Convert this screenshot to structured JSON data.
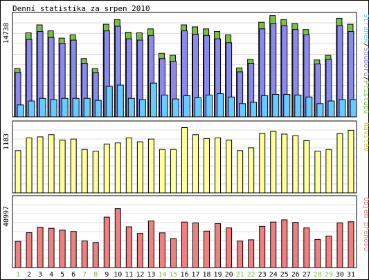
{
  "title": "Denní statistika za srpen 2010",
  "colors": {
    "background": "#ffffff",
    "border": "#000000",
    "grid": "#bfbfbf",
    "hits": "#7ac143",
    "files": "#8a8aee",
    "pages": "#66ccff",
    "visits": "#ffff99",
    "volume": "#f08080",
    "weekend": "#7ac143",
    "weekday": "#000000"
  },
  "chart_data": [
    {
      "type": "bar",
      "panel": "top",
      "title": "Denní statistika za srpen 2010",
      "ymax_label": "14738",
      "ylim": [
        0,
        14738
      ],
      "grid": true,
      "legend": "right-vertical",
      "legend_parts": [
        "Stránek",
        "Souborů",
        "Přístupů"
      ],
      "legend_separator": "/",
      "categories": [
        "1",
        "2",
        "3",
        "4",
        "5",
        "6",
        "7",
        "8",
        "9",
        "10",
        "11",
        "12",
        "13",
        "14",
        "15",
        "16",
        "17",
        "18",
        "19",
        "20",
        "21",
        "22",
        "23",
        "24",
        "25",
        "26",
        "27",
        "28",
        "29",
        "30",
        "31"
      ],
      "series": [
        {
          "name": "Přístupů",
          "values": [
            7300,
            12700,
            13900,
            13000,
            11900,
            12400,
            8800,
            7300,
            14000,
            14700,
            12800,
            12700,
            13300,
            9600,
            9300,
            13900,
            13600,
            13300,
            12900,
            12400,
            7400,
            8700,
            14300,
            15300,
            14700,
            14100,
            13200,
            8600,
            9300,
            14900,
            14000
          ]
        },
        {
          "name": "Souborů",
          "values": [
            6700,
            11700,
            12900,
            12000,
            11100,
            11600,
            8100,
            6700,
            13000,
            13700,
            11800,
            11600,
            12300,
            8800,
            8400,
            13000,
            12500,
            12300,
            11800,
            11200,
            6800,
            8100,
            13300,
            14100,
            13800,
            13200,
            12400,
            8000,
            8700,
            13800,
            12900
          ]
        },
        {
          "name": "Stránek",
          "values": [
            1800,
            2400,
            2800,
            2600,
            2800,
            2800,
            2800,
            2500,
            4600,
            4800,
            2800,
            2600,
            5100,
            3300,
            2700,
            3200,
            2900,
            3300,
            3500,
            3000,
            2000,
            2200,
            3200,
            3400,
            3400,
            3300,
            3000,
            2000,
            2400,
            2600,
            2600
          ]
        }
      ]
    },
    {
      "type": "bar",
      "panel": "middle",
      "ymax_label": "1183",
      "ylim": [
        0,
        1183
      ],
      "grid": true,
      "legend": "right-vertical",
      "categories": [
        "1",
        "2",
        "3",
        "4",
        "5",
        "6",
        "7",
        "8",
        "9",
        "10",
        "11",
        "12",
        "13",
        "14",
        "15",
        "16",
        "17",
        "18",
        "19",
        "20",
        "21",
        "22",
        "23",
        "24",
        "25",
        "26",
        "27",
        "28",
        "29",
        "30",
        "31"
      ],
      "series": [
        {
          "name": "Návštěv",
          "values": [
            770,
            1000,
            1020,
            1060,
            960,
            980,
            790,
            760,
            890,
            910,
            1000,
            930,
            980,
            790,
            790,
            1190,
            1060,
            990,
            1000,
            960,
            770,
            820,
            1080,
            1120,
            1070,
            1040,
            950,
            760,
            790,
            1080,
            1140
          ]
        }
      ]
    },
    {
      "type": "bar",
      "panel": "bottom",
      "ymax_label": "40997",
      "ylim": [
        0,
        40997
      ],
      "grid": true,
      "legend": "right-vertical",
      "categories": [
        "1",
        "2",
        "3",
        "4",
        "5",
        "6",
        "7",
        "8",
        "9",
        "10",
        "11",
        "12",
        "13",
        "14",
        "15",
        "16",
        "17",
        "18",
        "19",
        "20",
        "21",
        "22",
        "23",
        "24",
        "25",
        "26",
        "27",
        "28",
        "29",
        "30",
        "31"
      ],
      "series": [
        {
          "name": "Objem přenosu",
          "values": [
            16500,
            22000,
            25500,
            24800,
            23600,
            22800,
            16800,
            15800,
            31800,
            37200,
            25700,
            21500,
            29400,
            21900,
            18300,
            28700,
            28200,
            23000,
            27700,
            25000,
            16700,
            17500,
            26000,
            28700,
            30100,
            28500,
            25000,
            17700,
            19900,
            28200,
            28900
          ]
        }
      ]
    }
  ]
}
